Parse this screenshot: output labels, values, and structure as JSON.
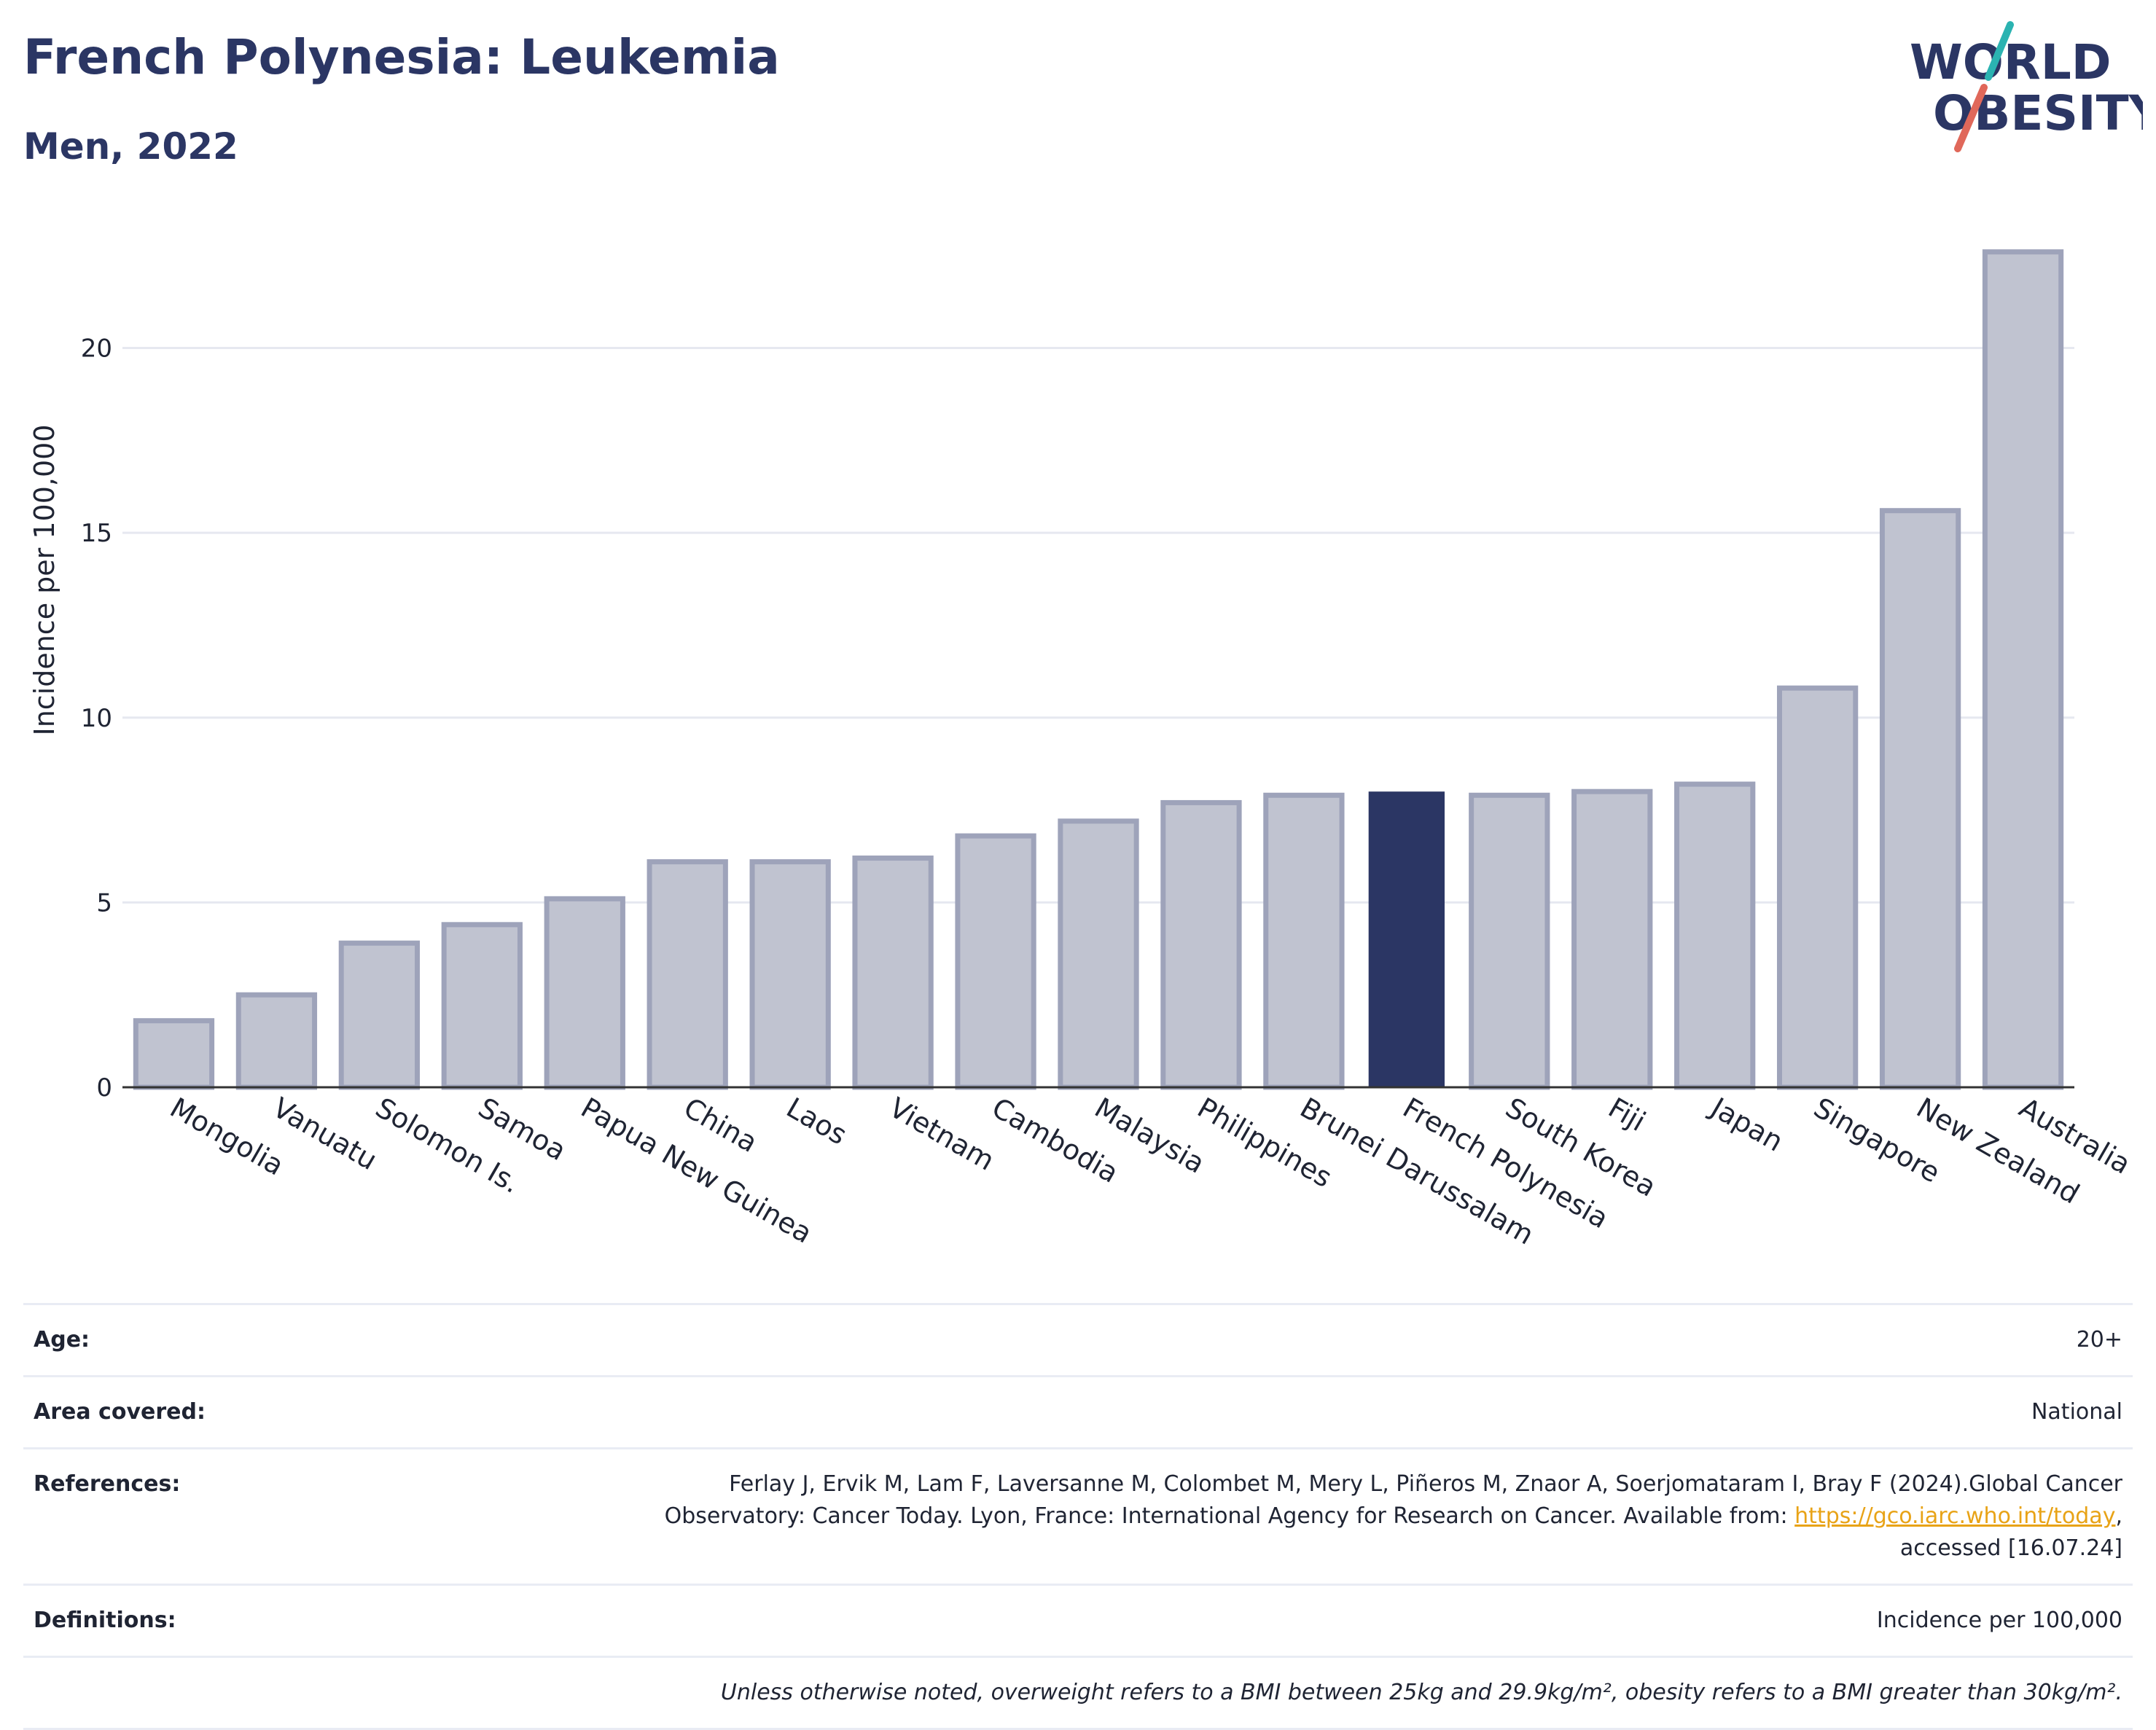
{
  "header": {
    "title": "French Polynesia: Leukemia",
    "subtitle": "Men, 2022"
  },
  "logo": {
    "line1": "WORLD",
    "line2": "OBESITY",
    "text_color": "#2b3664",
    "slash_teal": "#2bb3b1",
    "slash_red": "#e0685a"
  },
  "chart_data": {
    "type": "bar",
    "title": "",
    "xlabel": "",
    "ylabel": "Incidence per 100,000",
    "ylim": [
      0,
      23.5
    ],
    "yticks": [
      0,
      5,
      10,
      15,
      20
    ],
    "grid": true,
    "highlight_category": "French Polynesia",
    "highlight_color": "#2b3664",
    "bar_color": "#c0c3d0",
    "bar_border_color": "#9ea3ba",
    "categories": [
      "Mongolia",
      "Vanuatu",
      "Solomon Is.",
      "Samoa",
      "Papua New Guinea",
      "China",
      "Laos",
      "Vietnam",
      "Cambodia",
      "Malaysia",
      "Philippines",
      "Brunei Darussalam",
      "French Polynesia",
      "South Korea",
      "Fiji",
      "Japan",
      "Singapore",
      "New Zealand",
      "Australia"
    ],
    "values": [
      1.8,
      2.5,
      3.9,
      4.4,
      5.1,
      6.1,
      6.1,
      6.2,
      6.8,
      7.2,
      7.7,
      7.9,
      8.0,
      7.9,
      8.0,
      8.2,
      10.8,
      15.6,
      22.6
    ]
  },
  "info": {
    "age_label": "Age:",
    "age_value": "20+",
    "area_label": "Area covered:",
    "area_value": "National",
    "references_label": "References:",
    "references_line1": "Ferlay J, Ervik M, Lam F, Laversanne M, Colombet M, Mery L, Piñeros M, Znaor A, Soerjomataram I, Bray F (2024).Global Cancer",
    "references_line2_pre": "Observatory: Cancer Today. Lyon, France: International Agency for Research on Cancer. Available from: ",
    "references_link": "https://gco.iarc.who.int/today",
    "references_line2_post": ",",
    "references_line3": "accessed [16.07.24]",
    "definitions_label": "Definitions:",
    "definitions_value": "Incidence per 100,000",
    "note": "Unless otherwise noted, overweight refers to a BMI between 25kg and 29.9kg/m², obesity refers to a BMI greater than 30kg/m²."
  }
}
